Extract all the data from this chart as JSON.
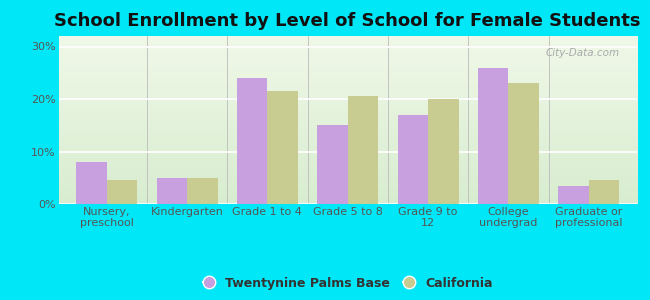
{
  "title": "School Enrollment by Level of School for Female Students",
  "categories": [
    "Nursery,\npreschool",
    "Kindergarten",
    "Grade 1 to 4",
    "Grade 5 to 8",
    "Grade 9 to\n12",
    "College\nundergrad",
    "Graduate or\nprofessional"
  ],
  "twentynine_palms": [
    8.0,
    5.0,
    24.0,
    15.0,
    17.0,
    26.0,
    3.5
  ],
  "california": [
    4.5,
    5.0,
    21.5,
    20.5,
    20.0,
    23.0,
    4.5
  ],
  "bar_color_tp": "#c8a0e0",
  "bar_color_ca": "#c8cc90",
  "background_outer": "#00e8f8",
  "background_inner": "#e0f0d8",
  "ylim": [
    0,
    32
  ],
  "yticks": [
    0,
    10,
    20,
    30
  ],
  "ytick_labels": [
    "0%",
    "10%",
    "20%",
    "30%"
  ],
  "legend_label_tp": "Twentynine Palms Base",
  "legend_label_ca": "California",
  "title_fontsize": 13,
  "tick_fontsize": 8,
  "legend_fontsize": 9
}
